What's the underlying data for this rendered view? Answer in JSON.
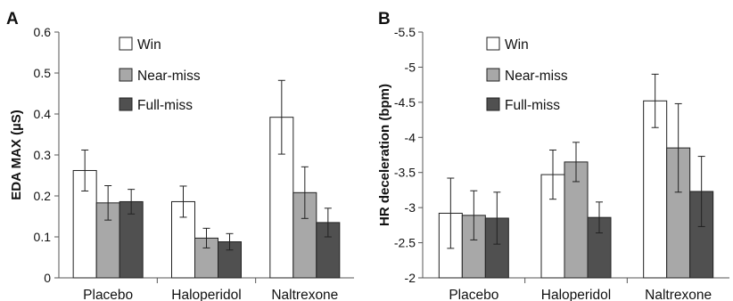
{
  "colors": {
    "win": "#ffffff",
    "near_miss": "#a8a8a8",
    "full_miss": "#505050",
    "bar_stroke": "#222222",
    "axis": "#555555"
  },
  "chart_data": [
    {
      "panel": "A",
      "type": "bar",
      "ylabel": "EDA MAX (µS)",
      "ylim": [
        0,
        0.6
      ],
      "yticks": [
        "0",
        "0.1",
        "0.2",
        "0.3",
        "0.4",
        "0.5",
        "0.6"
      ],
      "y_inverted": false,
      "legend_position": "top-left",
      "categories": [
        "Placebo",
        "Haloperidol",
        "Naltrexone"
      ],
      "series": [
        {
          "name": "Win",
          "values": [
            0.262,
            0.186,
            0.392
          ],
          "error": [
            0.05,
            0.038,
            0.09
          ]
        },
        {
          "name": "Near-miss",
          "values": [
            0.183,
            0.097,
            0.208
          ],
          "error": [
            0.042,
            0.024,
            0.063
          ]
        },
        {
          "name": "Full-miss",
          "values": [
            0.186,
            0.088,
            0.135
          ],
          "error": [
            0.03,
            0.02,
            0.035
          ]
        }
      ]
    },
    {
      "panel": "B",
      "type": "bar",
      "ylabel": "HR deceleration (bpm)",
      "ylim": [
        -2,
        -5.5
      ],
      "yticks": [
        "-2",
        "-2.5",
        "-3",
        "-3.5",
        "-4",
        "-4.5",
        "-5",
        "-5.5"
      ],
      "y_inverted": true,
      "legend_position": "top-left",
      "categories": [
        "Placebo",
        "Haloperidol",
        "Naltrexone"
      ],
      "series": [
        {
          "name": "Win",
          "values": [
            -2.92,
            -3.47,
            -4.52
          ],
          "error": [
            0.5,
            0.35,
            0.38
          ]
        },
        {
          "name": "Near-miss",
          "values": [
            -2.89,
            -3.65,
            -3.85
          ],
          "error": [
            0.35,
            0.28,
            0.63
          ]
        },
        {
          "name": "Full-miss",
          "values": [
            -2.85,
            -2.86,
            -3.23
          ],
          "error": [
            0.37,
            0.22,
            0.5
          ]
        }
      ]
    }
  ]
}
